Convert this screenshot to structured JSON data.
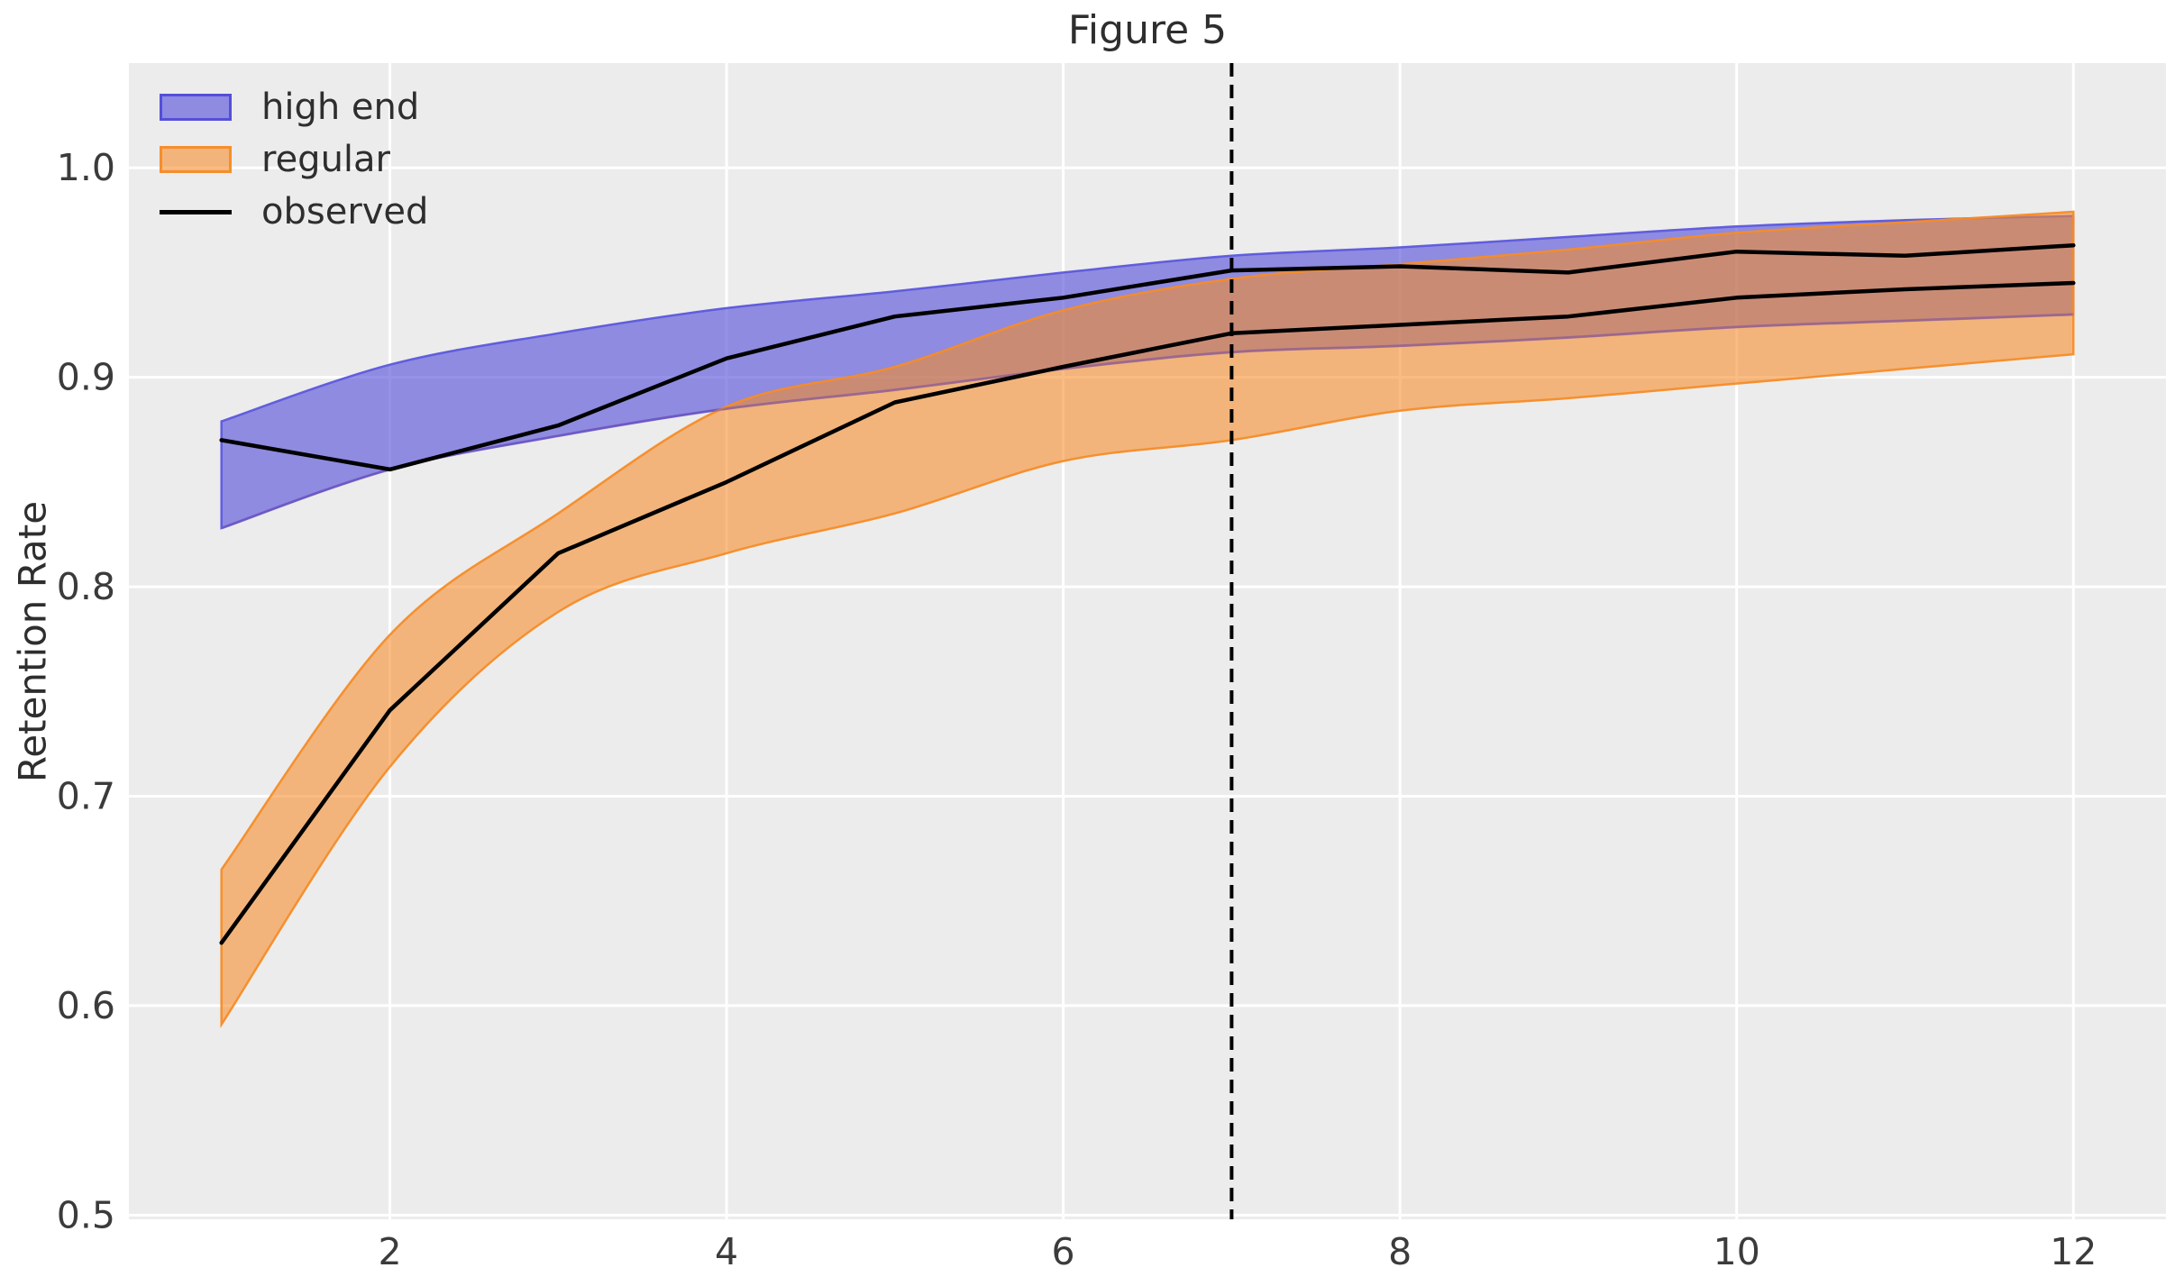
{
  "figure": {
    "title": "Figure 5",
    "ylabel": "Retention Rate"
  },
  "legend": {
    "position": "upper left",
    "items": [
      {
        "label": "high end",
        "key": "band",
        "color": "#5C58DC"
      },
      {
        "label": "regular",
        "key": "band",
        "color": "#F68C28"
      },
      {
        "label": "observed",
        "key": "line",
        "color": "#000000"
      }
    ]
  },
  "chart_data": {
    "type": "line",
    "title": "Figure 5",
    "xlabel": "",
    "ylabel": "Retention Rate",
    "x": [
      1,
      2,
      3,
      4,
      5,
      6,
      7,
      8,
      9,
      10,
      11,
      12
    ],
    "series": [
      {
        "name": "high end",
        "kind": "band",
        "color_rgb": [
          92,
          88,
          220
        ],
        "fill_opacity": 0.65,
        "upper": [
          0.879,
          0.906,
          0.921,
          0.933,
          0.941,
          0.95,
          0.958,
          0.962,
          0.967,
          0.972,
          0.975,
          0.977
        ],
        "lower": [
          0.828,
          0.856,
          0.872,
          0.885,
          0.894,
          0.904,
          0.912,
          0.915,
          0.919,
          0.924,
          0.927,
          0.93
        ]
      },
      {
        "name": "regular",
        "kind": "band",
        "color_rgb": [
          246,
          140,
          40
        ],
        "fill_opacity": 0.58,
        "upper": [
          0.665,
          0.777,
          0.835,
          0.886,
          0.905,
          0.932,
          0.947,
          0.954,
          0.961,
          0.969,
          0.974,
          0.979
        ],
        "lower": [
          0.591,
          0.714,
          0.788,
          0.816,
          0.835,
          0.86,
          0.87,
          0.884,
          0.89,
          0.897,
          0.904,
          0.911
        ]
      },
      {
        "name": "observed high end",
        "kind": "line",
        "color": "#000000",
        "values": [
          0.87,
          0.856,
          0.877,
          0.909,
          0.929,
          0.938,
          0.951,
          0.953,
          0.95,
          0.96,
          0.958,
          0.963
        ]
      },
      {
        "name": "observed regular",
        "kind": "line",
        "color": "#000000",
        "values": [
          0.63,
          0.741,
          0.816,
          0.85,
          0.888,
          0.905,
          0.921,
          0.925,
          0.929,
          0.938,
          0.942,
          0.945
        ]
      }
    ],
    "vline": {
      "x": 7,
      "style": "dashed",
      "color": "#000000"
    },
    "xticks": [
      2,
      4,
      6,
      8,
      10,
      12
    ],
    "yticks": [
      0.5,
      0.6,
      0.7,
      0.8,
      0.9,
      1.0
    ],
    "xlim": [
      0.45,
      12.55
    ],
    "ylim": [
      0.498,
      1.05
    ],
    "grid": true,
    "plot_bg": "#ECECEC",
    "grid_color": "#FFFFFF",
    "tick_color": "#3B3B3B",
    "legend_position": "upper left"
  }
}
